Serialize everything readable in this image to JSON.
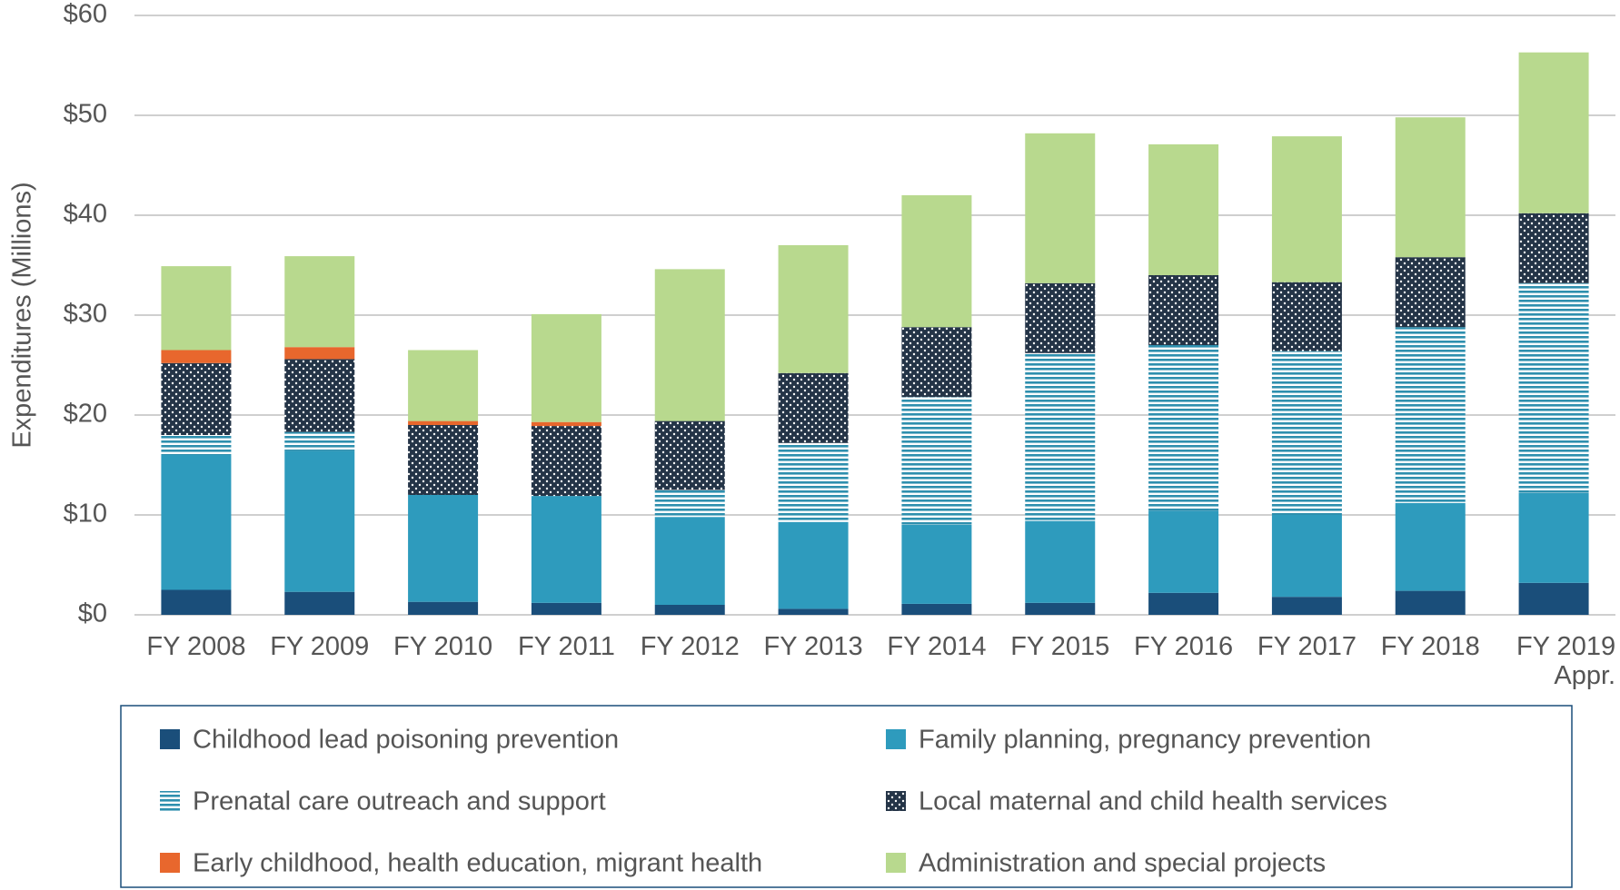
{
  "chart_data": {
    "type": "stacked_bar",
    "y_axis_label": "Expenditures (Millions)",
    "categories": [
      "FY 2008",
      "FY 2009",
      "FY 2010",
      "FY 2011",
      "FY 2012",
      "FY 2013",
      "FY 2014",
      "FY 2015",
      "FY 2016",
      "FY 2017",
      "FY 2018",
      "FY 2019 Appr."
    ],
    "ylim": [
      0,
      60
    ],
    "yticks": [
      {
        "value": 0,
        "label": "$0"
      },
      {
        "value": 10,
        "label": "$10"
      },
      {
        "value": 20,
        "label": "$20"
      },
      {
        "value": 30,
        "label": "$30"
      },
      {
        "value": 40,
        "label": "$40"
      },
      {
        "value": 50,
        "label": "$50"
      },
      {
        "value": 60,
        "label": "$60"
      }
    ],
    "grid": true,
    "legend": "bottom",
    "series": [
      {
        "name": "Childhood lead poisoning prevention",
        "color": "#1a4e7a",
        "values": [
          2.5,
          2.3,
          1.3,
          1.2,
          1.0,
          0.6,
          1.1,
          1.2,
          2.2,
          1.8,
          2.4,
          3.2
        ]
      },
      {
        "name": "Family planning, pregnancy prevention",
        "color": "#2e9bbd",
        "values": [
          13.5,
          14.1,
          10.7,
          10.7,
          8.8,
          8.7,
          7.9,
          8.2,
          8.2,
          8.2,
          8.8,
          9.0
        ]
      },
      {
        "name": "Prenatal care outreach and support",
        "color": "#2e8fae",
        "pattern": "horizontal-lines",
        "values": [
          2.0,
          1.9,
          0,
          0,
          2.7,
          7.9,
          12.8,
          16.8,
          16.6,
          16.4,
          17.6,
          21.0
        ]
      },
      {
        "name": "Local maternal and child health services",
        "color": "#243447",
        "pattern": "dots",
        "values": [
          7.2,
          7.3,
          7.0,
          7.0,
          6.9,
          7.0,
          7.0,
          7.0,
          7.0,
          6.9,
          7.0,
          7.0
        ]
      },
      {
        "name": "Early childhood, health education, migrant health",
        "color": "#e8672d",
        "values": [
          1.3,
          1.2,
          0.4,
          0.4,
          0,
          0,
          0,
          0,
          0,
          0,
          0,
          0
        ]
      },
      {
        "name": "Administration and special projects",
        "color": "#b8d98e",
        "values": [
          8.4,
          9.1,
          7.1,
          10.8,
          15.2,
          12.8,
          13.2,
          15.0,
          13.1,
          14.6,
          14.0,
          16.1
        ]
      }
    ]
  }
}
